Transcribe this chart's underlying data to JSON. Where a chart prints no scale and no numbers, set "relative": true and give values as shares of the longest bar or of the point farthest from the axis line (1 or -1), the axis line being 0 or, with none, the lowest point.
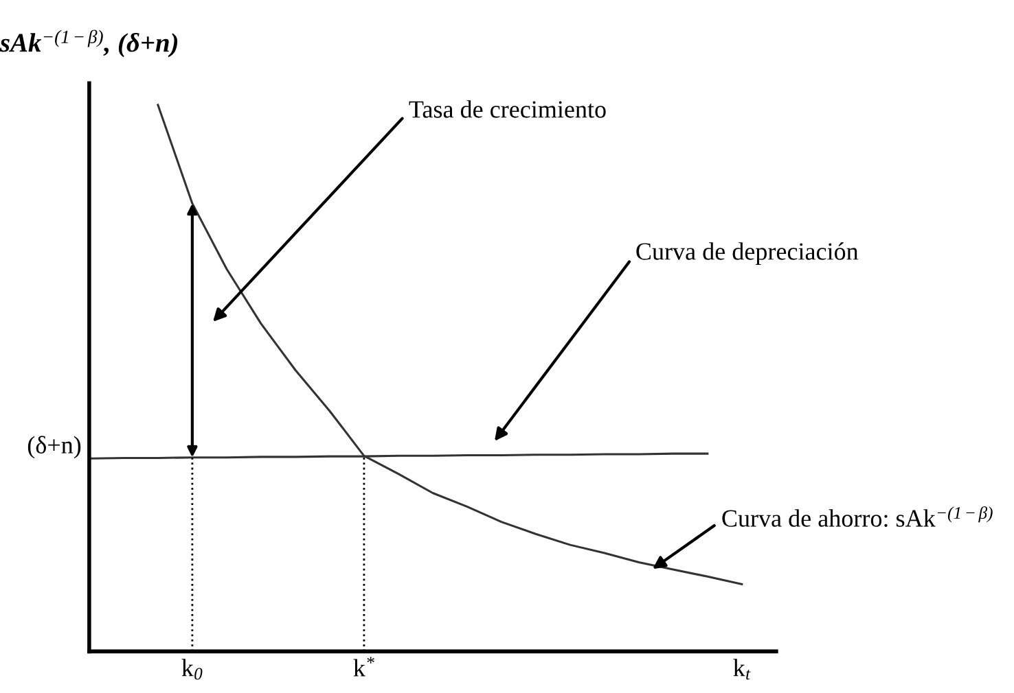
{
  "chart_data": {
    "type": "line",
    "relative": true,
    "ylabel": "sAk$^{−(1−β)}$, (δ+n)",
    "categories": [
      null,
      null,
      null,
      "k$_{0}$",
      null,
      null,
      null,
      null,
      "k$^{*}$",
      null,
      null,
      null,
      null,
      null,
      null,
      null,
      null,
      null,
      null,
      "k$_{t}$",
      null
    ],
    "tick_labels": "x",
    "grid": false,
    "legend": false,
    "marker": "none",
    "line_style": "solid",
    "series": [
      {
        "color": "#333333",
        "values": [
          null,
          null,
          1.0,
          0.82,
          0.7,
          0.6,
          0.515,
          0.44,
          0.358,
          0.325,
          0.29,
          0.265,
          0.237,
          0.215,
          0.195,
          0.18,
          0.163,
          0.15,
          0.137,
          0.123,
          null
        ]
      },
      {
        "color": "#333333",
        "values": [
          0.353,
          0.354,
          0.354,
          0.355,
          0.355,
          0.356,
          0.356,
          0.357,
          0.357,
          0.358,
          0.358,
          0.359,
          0.359,
          0.36,
          0.36,
          0.361,
          0.361,
          0.362,
          0.362,
          null,
          null
        ]
      }
    ],
    "ref_lines": [
      {
        "axis": "x",
        "value": "k$_{0}$",
        "line_style": "dotted",
        "color": "#000000"
      },
      {
        "axis": "x",
        "value": "k$^{*}$",
        "line_style": "dotted",
        "color": "#000000"
      }
    ],
    "annotations": [
      "(δ+n)",
      "Tasa de crecimiento",
      "Curva de depreciación",
      "Curva de ahorro: sAk$^{−(1−β)}$"
    ]
  }
}
